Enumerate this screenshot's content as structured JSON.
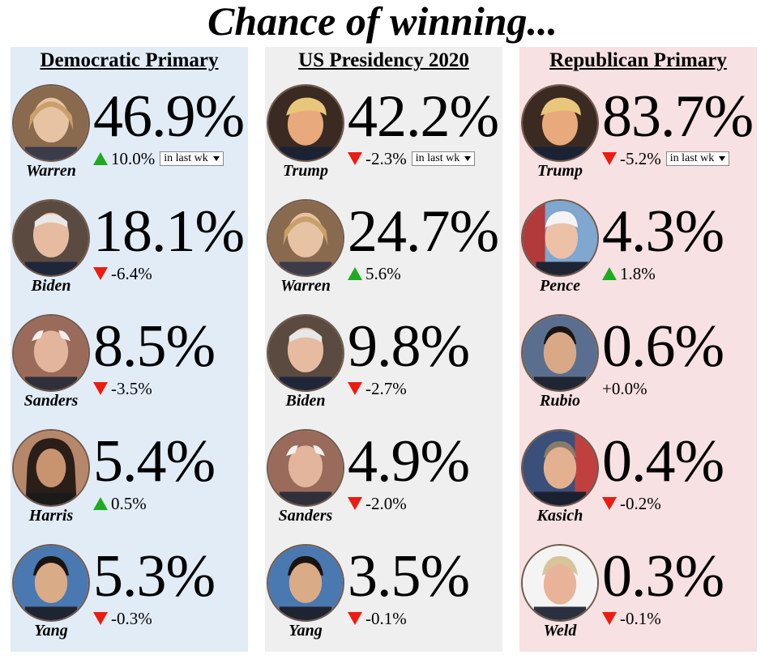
{
  "page": {
    "title": "Chance of winning..."
  },
  "columns": [
    {
      "title": "Democratic Primary",
      "bg": "#e2ecf7",
      "rows": [
        {
          "name": "Warren",
          "percent": "46.9%",
          "trend": "up",
          "change": "10.0%",
          "period": "in last wk"
        },
        {
          "name": "Biden",
          "percent": "18.1%",
          "trend": "down",
          "change": "-6.4%"
        },
        {
          "name": "Sanders",
          "percent": "8.5%",
          "trend": "down",
          "change": "-3.5%"
        },
        {
          "name": "Harris",
          "percent": "5.4%",
          "trend": "up",
          "change": "0.5%"
        },
        {
          "name": "Yang",
          "percent": "5.3%",
          "trend": "down",
          "change": "-0.3%"
        }
      ]
    },
    {
      "title": "US Presidency 2020",
      "bg": "#efefef",
      "rows": [
        {
          "name": "Trump",
          "percent": "42.2%",
          "trend": "down",
          "change": "-2.3%",
          "period": "in last wk"
        },
        {
          "name": "Warren",
          "percent": "24.7%",
          "trend": "up",
          "change": "5.6%"
        },
        {
          "name": "Biden",
          "percent": "9.8%",
          "trend": "down",
          "change": "-2.7%"
        },
        {
          "name": "Sanders",
          "percent": "4.9%",
          "trend": "down",
          "change": "-2.0%"
        },
        {
          "name": "Yang",
          "percent": "3.5%",
          "trend": "down",
          "change": "-0.1%"
        }
      ]
    },
    {
      "title": "Republican Primary",
      "bg": "#f7e1e2",
      "rows": [
        {
          "name": "Trump",
          "percent": "83.7%",
          "trend": "down",
          "change": "-5.2%",
          "period": "in last wk"
        },
        {
          "name": "Pence",
          "percent": "4.3%",
          "trend": "up",
          "change": "1.8%"
        },
        {
          "name": "Rubio",
          "percent": "0.6%",
          "trend": "none",
          "change": "+0.0%"
        },
        {
          "name": "Kasich",
          "percent": "0.4%",
          "trend": "down",
          "change": "-0.2%"
        },
        {
          "name": "Weld",
          "percent": "0.3%",
          "trend": "down",
          "change": "-0.1%"
        }
      ]
    }
  ],
  "colors": {
    "up": "#1faa1f",
    "down": "#ee1c10"
  }
}
